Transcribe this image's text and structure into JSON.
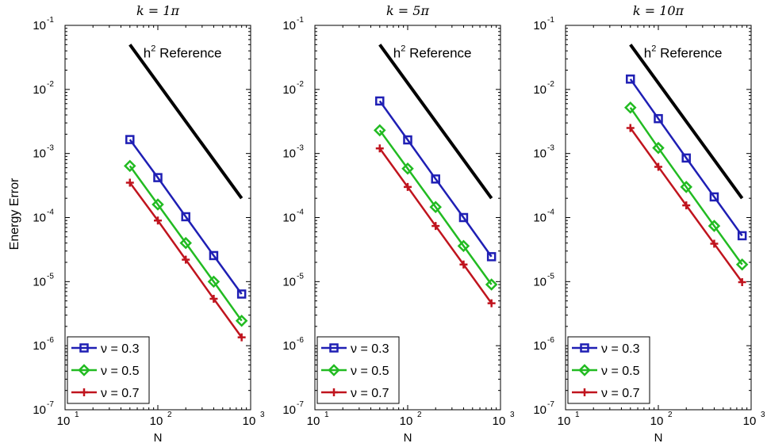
{
  "figure": {
    "ylabel": "Energy Error",
    "xlabel": "N"
  },
  "chart_data": [
    {
      "type": "line",
      "title": "k = 1π",
      "xlabel": "N",
      "ylabel": "Energy Error",
      "xscale": "log",
      "yscale": "log",
      "xlim": [
        10,
        1000
      ],
      "ylim": [
        1e-07,
        0.1
      ],
      "grid": false,
      "legend_position": "bottom-left",
      "x": [
        50,
        100,
        200,
        400,
        800
      ],
      "series": [
        {
          "name": "ν = 0.3",
          "color": "#1f1fb4",
          "marker": "square",
          "values": [
            0.00165,
            0.00042,
            0.000103,
            2.55e-05,
            6.4e-06
          ]
        },
        {
          "name": "ν = 0.5",
          "color": "#22bb22",
          "marker": "diamond",
          "values": [
            0.00064,
            0.00016,
            4e-05,
            1e-05,
            2.45e-06
          ]
        },
        {
          "name": "ν = 0.7",
          "color": "#c0141e",
          "marker": "plus",
          "values": [
            0.00035,
            9e-05,
            2.2e-05,
            5.4e-06,
            1.35e-06
          ]
        }
      ],
      "reference": {
        "label": "h",
        "label_sup": "2",
        "label_rest": " Reference",
        "x": [
          50,
          800
        ],
        "values": [
          0.05,
          0.0002
        ],
        "color": "#000000"
      }
    },
    {
      "type": "line",
      "title": "k = 5π",
      "xlabel": "N",
      "ylabel": "",
      "xscale": "log",
      "yscale": "log",
      "xlim": [
        10,
        1000
      ],
      "ylim": [
        1e-07,
        0.1
      ],
      "grid": false,
      "legend_position": "bottom-left",
      "x": [
        50,
        100,
        200,
        400,
        800
      ],
      "series": [
        {
          "name": "ν = 0.3",
          "color": "#1f1fb4",
          "marker": "square",
          "values": [
            0.0066,
            0.00163,
            0.0004,
            0.0001,
            2.45e-05
          ]
        },
        {
          "name": "ν = 0.5",
          "color": "#22bb22",
          "marker": "diamond",
          "values": [
            0.0023,
            0.00058,
            0.000146,
            3.6e-05,
            9e-06
          ]
        },
        {
          "name": "ν = 0.7",
          "color": "#c0141e",
          "marker": "plus",
          "values": [
            0.0012,
            0.0003,
            7.4e-05,
            1.85e-05,
            4.6e-06
          ]
        }
      ],
      "reference": {
        "label": "h",
        "label_sup": "2",
        "label_rest": " Reference",
        "x": [
          50,
          800
        ],
        "values": [
          0.05,
          0.0002
        ],
        "color": "#000000"
      }
    },
    {
      "type": "line",
      "title": "k = 10π",
      "xlabel": "N",
      "ylabel": "",
      "xscale": "log",
      "yscale": "log",
      "xlim": [
        10,
        1000
      ],
      "ylim": [
        1e-07,
        0.1
      ],
      "grid": false,
      "legend_position": "bottom-left",
      "x": [
        50,
        100,
        200,
        400,
        800
      ],
      "series": [
        {
          "name": "ν = 0.3",
          "color": "#1f1fb4",
          "marker": "square",
          "values": [
            0.0145,
            0.0035,
            0.00085,
            0.00021,
            5.2e-05
          ]
        },
        {
          "name": "ν = 0.5",
          "color": "#22bb22",
          "marker": "diamond",
          "values": [
            0.0052,
            0.00122,
            0.0003,
            7.4e-05,
            1.85e-05
          ]
        },
        {
          "name": "ν = 0.7",
          "color": "#c0141e",
          "marker": "plus",
          "values": [
            0.0025,
            0.00062,
            0.000155,
            3.9e-05,
            9.8e-06
          ]
        }
      ],
      "reference": {
        "label": "h",
        "label_sup": "2",
        "label_rest": " Reference",
        "x": [
          50,
          800
        ],
        "values": [
          0.05,
          0.0002
        ],
        "color": "#000000"
      }
    }
  ]
}
